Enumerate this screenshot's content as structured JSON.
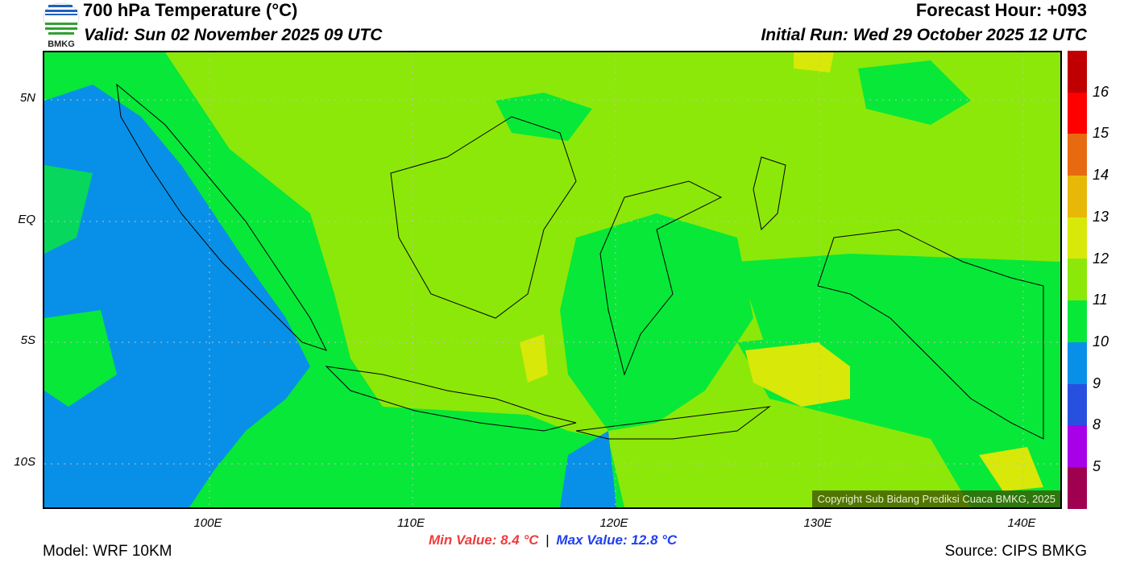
{
  "header": {
    "logo_text": "BMKG",
    "title": "700 hPa Temperature (°C)",
    "valid": "Valid: Sun 02 November 2025 09 UTC",
    "forecast_hour": "Forecast Hour: +093",
    "initial_run": "Initial Run: Wed 29 October 2025 12 UTC"
  },
  "map": {
    "lat_labels": [
      "5N",
      "EQ",
      "5S",
      "10S"
    ],
    "lon_labels": [
      "100E",
      "110E",
      "120E",
      "130E",
      "140E"
    ],
    "copyright": "Copyright Sub Bidang Prediksi Cuaca BMKG, 2025"
  },
  "colorbar": {
    "labels": [
      "16",
      "15",
      "14",
      "13",
      "12",
      "11",
      "10",
      "9",
      "8",
      "5"
    ],
    "colors": [
      "#c00000",
      "#ff0000",
      "#e86a10",
      "#e8b808",
      "#d8e808",
      "#8ce808",
      "#08e838",
      "#0890e8",
      "#2850e0",
      "#a800e8",
      "#a00050"
    ]
  },
  "footer": {
    "model": "Model: WRF 10KM",
    "min_value": "Min Value: 8.4 °C",
    "separator": "|",
    "max_value": "Max Value: 12.8 °C",
    "source": "Source: CIPS BMKG"
  }
}
